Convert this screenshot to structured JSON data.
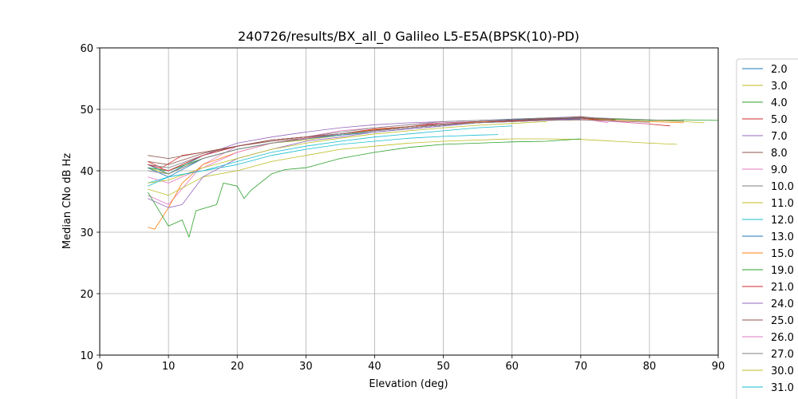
{
  "chart_data": {
    "type": "line",
    "title": "240726/results/BX_all_0 Galileo L5-E5A(BPSK(10)-PD)",
    "xlabel": "Elevation (deg)",
    "ylabel": "Median CNo dB Hz",
    "xlim": [
      0,
      90
    ],
    "ylim": [
      10,
      60
    ],
    "xticks": [
      0,
      10,
      20,
      30,
      40,
      50,
      60,
      70,
      80,
      90
    ],
    "yticks": [
      10,
      20,
      30,
      40,
      50,
      60
    ],
    "grid": true,
    "legend": "right, outside",
    "series": [
      {
        "name": "2.0",
        "color": "#1f77b4",
        "x": [
          7,
          10,
          15,
          20,
          25,
          30,
          35,
          40,
          45,
          50,
          55,
          60,
          65,
          70,
          72
        ],
        "y": [
          41,
          39.5,
          42.5,
          44,
          45,
          45.5,
          46,
          46.8,
          47.2,
          47.8,
          48,
          48.3,
          48.5,
          48.6,
          48.4
        ]
      },
      {
        "name": "3.0",
        "color": "#bcbd22",
        "x": [
          7,
          10,
          15,
          20,
          25,
          30,
          35,
          40,
          45,
          50,
          55,
          60,
          65,
          70,
          75,
          80,
          85,
          88
        ],
        "y": [
          40.5,
          39.5,
          42,
          43.5,
          44.5,
          45,
          45.8,
          46.5,
          47,
          47.5,
          47.8,
          48,
          48.2,
          48.3,
          48.4,
          48.2,
          48,
          47.8
        ]
      },
      {
        "name": "4.0",
        "color": "#2ca02c",
        "x": [
          7,
          10,
          15,
          20,
          25,
          30,
          35,
          40,
          45,
          50,
          55,
          60,
          65,
          70,
          75,
          80,
          85,
          90
        ],
        "y": [
          40.5,
          40,
          42,
          43.5,
          44.5,
          45.2,
          46,
          46.5,
          47,
          47.5,
          48,
          48.2,
          48.4,
          48.5,
          48.4,
          48.2,
          48.3,
          48.2
        ]
      },
      {
        "name": "5.0",
        "color": "#d62728",
        "x": [
          7,
          9,
          12,
          15,
          20,
          25,
          30,
          35,
          40,
          45,
          50,
          55,
          60,
          65,
          70,
          75,
          80,
          83
        ],
        "y": [
          41.5,
          40.5,
          42.5,
          43,
          44,
          45,
          45.5,
          46,
          46.8,
          47.2,
          47.8,
          48,
          48.2,
          48.3,
          48.6,
          48,
          47.6,
          47.3
        ]
      },
      {
        "name": "7.0",
        "color": "#9467bd",
        "x": [
          7,
          10,
          15,
          20,
          25,
          30,
          35,
          40,
          45,
          50,
          55,
          60,
          65,
          70,
          72
        ],
        "y": [
          41,
          40,
          42.5,
          44.5,
          45.5,
          46.3,
          47,
          47.5,
          47.8,
          48,
          48.2,
          48.4,
          48.6,
          48.8,
          48.5
        ]
      },
      {
        "name": "8.0",
        "color": "#8c564b",
        "x": [
          7,
          10,
          15,
          20,
          25,
          30,
          35,
          40,
          45,
          50,
          55,
          60,
          65,
          70,
          75
        ],
        "y": [
          42.5,
          42,
          43,
          44,
          44.8,
          45.3,
          46,
          46.5,
          47,
          47.5,
          47.8,
          48.2,
          48.5,
          48.8,
          48.3
        ]
      },
      {
        "name": "9.0",
        "color": "#e377c2",
        "x": [
          7,
          10,
          15,
          20,
          25,
          30,
          35,
          40,
          45,
          50,
          55,
          60,
          65,
          70,
          74
        ],
        "y": [
          36,
          34.5,
          41,
          44,
          45,
          45.5,
          46.5,
          47,
          47.5,
          47.8,
          48,
          48.2,
          48.3,
          48.5,
          47.8
        ]
      },
      {
        "name": "10.0",
        "color": "#7f7f7f",
        "x": [
          7,
          10,
          15,
          20,
          25,
          30,
          35,
          40,
          45,
          50,
          55,
          60,
          65,
          70,
          75,
          80,
          85
        ],
        "y": [
          41,
          40.5,
          42.5,
          44,
          45,
          45.5,
          46.3,
          47,
          47.5,
          48,
          48.2,
          48.4,
          48.6,
          48.7,
          48.5,
          48.3,
          48.1
        ]
      },
      {
        "name": "11.0",
        "color": "#bcbd22",
        "x": [
          7,
          10,
          15,
          20,
          25,
          30,
          35,
          40,
          45,
          50,
          55,
          60,
          65,
          70,
          75,
          80,
          84
        ],
        "y": [
          37,
          36,
          39,
          40,
          41.5,
          42.5,
          43.5,
          44,
          44.5,
          44.8,
          45,
          45.2,
          45.2,
          45.1,
          44.8,
          44.5,
          44.3
        ]
      },
      {
        "name": "12.0",
        "color": "#17becf",
        "x": [
          7,
          10,
          15,
          20,
          25,
          30,
          35,
          40,
          45,
          50,
          55,
          58
        ],
        "y": [
          38,
          39,
          40,
          41,
          42.5,
          43.5,
          44.3,
          44.8,
          45.3,
          45.6,
          45.8,
          45.9
        ]
      },
      {
        "name": "13.0",
        "color": "#1f77b4",
        "x": [
          7,
          10,
          15,
          20,
          25,
          30,
          35,
          40,
          45,
          50,
          55,
          60,
          65,
          70
        ],
        "y": [
          40.5,
          39,
          42,
          43.5,
          44.5,
          45.2,
          45.8,
          46.3,
          46.8,
          47.3,
          47.8,
          48,
          48.2,
          48.4
        ]
      },
      {
        "name": "15.0",
        "color": "#ff7f0e",
        "x": [
          7,
          8,
          10,
          12,
          15,
          20,
          25,
          30,
          35,
          40,
          45,
          50,
          55,
          60,
          65,
          70,
          75,
          80,
          85
        ],
        "y": [
          30.8,
          30.5,
          34,
          38,
          41,
          43,
          44.5,
          45.3,
          46,
          46.7,
          47.2,
          47.6,
          47.9,
          48,
          48.2,
          48.3,
          48.2,
          48,
          47.8
        ]
      },
      {
        "name": "19.0",
        "color": "#2ca02c",
        "x": [
          7,
          10,
          12,
          13,
          14,
          17,
          18,
          20,
          21,
          22,
          25,
          27,
          30,
          35,
          40,
          45,
          50,
          55,
          60,
          65,
          70
        ],
        "y": [
          36.5,
          31,
          32,
          29.2,
          33.5,
          34.5,
          38,
          37.5,
          35.5,
          36.8,
          39.5,
          40.2,
          40.5,
          42,
          43,
          43.8,
          44.3,
          44.5,
          44.7,
          44.8,
          45.2
        ]
      },
      {
        "name": "21.0",
        "color": "#d62728",
        "x": [
          7,
          10,
          15,
          20,
          25,
          30,
          35,
          40,
          45,
          50,
          55,
          60,
          65,
          70
        ],
        "y": [
          41,
          40,
          42.5,
          44,
          45,
          45.5,
          46,
          46.5,
          47,
          47.5,
          47.8,
          48.1,
          48.3,
          48.5
        ]
      },
      {
        "name": "24.0",
        "color": "#9467bd",
        "x": [
          7,
          10,
          12,
          15,
          20,
          25,
          30,
          35,
          40,
          45,
          50,
          55,
          60,
          65,
          70
        ],
        "y": [
          35.5,
          34,
          34.5,
          39,
          42,
          43.5,
          44.8,
          45.5,
          46.3,
          46.8,
          47.3,
          47.8,
          48,
          48.3,
          48.5
        ]
      },
      {
        "name": "25.0",
        "color": "#8c564b",
        "x": [
          7,
          10,
          15,
          20,
          25,
          30,
          35,
          40,
          45,
          50,
          55,
          60,
          65,
          70,
          75
        ],
        "y": [
          41.5,
          41,
          42.8,
          44,
          45,
          45.5,
          46,
          46.6,
          47.2,
          47.6,
          48,
          48.2,
          48.4,
          48.6,
          48.3
        ]
      },
      {
        "name": "26.0",
        "color": "#e377c2",
        "x": [
          7,
          10,
          15,
          20,
          25,
          30,
          35,
          40,
          45,
          50,
          55,
          60,
          65,
          70,
          75,
          80
        ],
        "y": [
          39,
          38,
          40.5,
          43,
          44.5,
          45.3,
          46,
          46.5,
          47,
          47.5,
          47.8,
          48,
          48.2,
          48.3,
          48,
          47.6
        ]
      },
      {
        "name": "27.0",
        "color": "#7f7f7f",
        "x": [
          7,
          10,
          15,
          20,
          25,
          30,
          35,
          40,
          45,
          50,
          55,
          60,
          65,
          70,
          75,
          80
        ],
        "y": [
          40,
          39.5,
          42,
          43.5,
          44.5,
          45.2,
          46,
          46.5,
          47,
          47.5,
          47.8,
          48,
          48.2,
          48.3,
          48.1,
          47.9
        ]
      },
      {
        "name": "30.0",
        "color": "#bcbd22",
        "x": [
          7,
          10,
          15,
          20,
          25,
          30,
          35,
          40,
          45,
          50,
          55,
          60,
          65
        ],
        "y": [
          38,
          38.5,
          40.5,
          42,
          43.5,
          44.5,
          45.3,
          46,
          46.5,
          47,
          47.4,
          47.7,
          48
        ]
      },
      {
        "name": "31.0",
        "color": "#17becf",
        "x": [
          7,
          10,
          15,
          20,
          25,
          30,
          35,
          40,
          45,
          50,
          55,
          60
        ],
        "y": [
          37.5,
          39,
          40,
          41.5,
          43,
          44,
          44.8,
          45.5,
          46,
          46.5,
          47,
          47.3
        ]
      }
    ]
  }
}
